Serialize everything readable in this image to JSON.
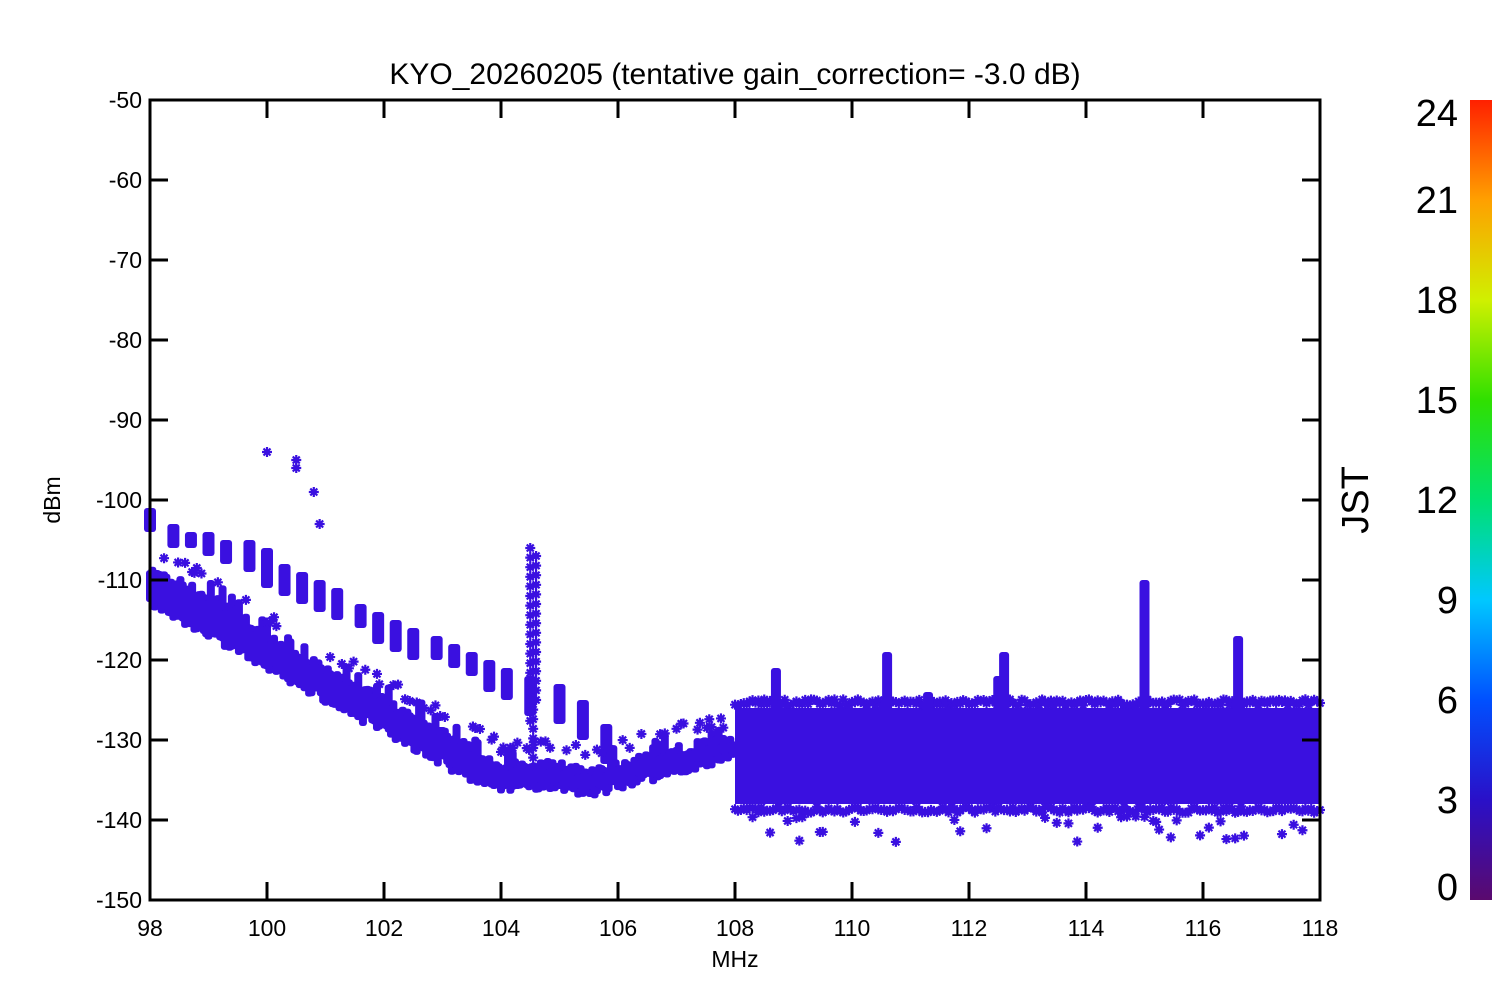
{
  "chart_data": {
    "type": "scatter",
    "title": "KYO_20260205 (tentative gain_correction= -3.0 dB)",
    "xlabel": "MHz",
    "ylabel": "dBm",
    "xlim": [
      98,
      118
    ],
    "ylim": [
      -150,
      -50
    ],
    "xticks": [
      98,
      100,
      102,
      104,
      106,
      108,
      110,
      112,
      114,
      116,
      118
    ],
    "yticks": [
      -50,
      -60,
      -70,
      -80,
      -90,
      -100,
      -110,
      -120,
      -130,
      -140,
      -150
    ],
    "grid": false,
    "marker": "asterisk",
    "point_color": "#3a10e0",
    "colorbar": {
      "label": "JST",
      "range": [
        0,
        24
      ],
      "ticks": [
        0,
        3,
        6,
        9,
        12,
        15,
        18,
        21,
        24
      ],
      "colors": [
        "#5a0a6e",
        "#2a10c8",
        "#0050ff",
        "#00c8ff",
        "#00e070",
        "#30e000",
        "#d0f000",
        "#ffa000",
        "#ff2000"
      ]
    },
    "series": [
      {
        "group": "upper_spur_sequence",
        "x": [
          98.0,
          98.4,
          98.7,
          99.0,
          99.3,
          99.7,
          100.0,
          100.3,
          100.6,
          100.9,
          101.2,
          101.6,
          101.9,
          102.2,
          102.5,
          102.9,
          103.2,
          103.5,
          103.8,
          104.1,
          104.5,
          105.0,
          105.4,
          105.8
        ],
        "y_low": [
          -104,
          -106,
          -106,
          -107,
          -108,
          -109,
          -111,
          -112,
          -113,
          -114,
          -115,
          -116,
          -118,
          -119,
          -120,
          -120,
          -121,
          -122,
          -124,
          -125,
          -127,
          -128,
          -130,
          -133
        ],
        "y_high": [
          -101,
          -103,
          -104,
          -104,
          -105,
          -105,
          -106,
          -108,
          -109,
          -110,
          -111,
          -113,
          -114,
          -115,
          -116,
          -117,
          -118,
          -119,
          -120,
          -121,
          -122,
          -123,
          -125,
          -128
        ]
      },
      {
        "group": "isolated_high_points",
        "x": [
          100.0,
          100.5,
          100.5,
          100.8,
          100.9
        ],
        "y": [
          -94,
          -95,
          -96,
          -99,
          -103
        ]
      },
      {
        "group": "lower_envelope",
        "x": [
          98.0,
          98.5,
          99.0,
          99.5,
          100.0,
          100.5,
          101.0,
          101.5,
          102.0,
          102.5,
          103.0,
          103.5,
          104.0,
          104.5,
          105.0,
          105.5,
          106.0,
          106.5,
          107.0,
          107.5,
          108.0
        ],
        "y_low": [
          -113,
          -115,
          -117,
          -119,
          -121,
          -123,
          -125,
          -127,
          -129,
          -131,
          -133,
          -135,
          -136,
          -136,
          -136,
          -137,
          -136,
          -135,
          -134,
          -133,
          -132
        ],
        "y_high": [
          -109,
          -110,
          -112,
          -114,
          -117,
          -119,
          -121,
          -123,
          -125,
          -127,
          -129,
          -131,
          -133,
          -133,
          -133,
          -134,
          -133,
          -132,
          -131,
          -130,
          -130
        ]
      },
      {
        "group": "spike_104_6",
        "x": [
          104.5,
          104.55,
          104.6
        ],
        "y_low": [
          -128,
          -133,
          -126
        ],
        "y_high": [
          -106,
          -119,
          -107
        ]
      },
      {
        "group": "noise_band_108_118",
        "x_range": [
          108.0,
          118.0
        ],
        "y_low": -138,
        "y_high": -126,
        "outliers_min": -143
      },
      {
        "group": "narrow_spikes_above_108",
        "x": [
          108.7,
          110.6,
          111.3,
          112.5,
          112.6,
          115.0,
          116.6
        ],
        "y_top": [
          -121,
          -119,
          -124,
          -122,
          -119,
          -110,
          -117
        ]
      }
    ]
  }
}
